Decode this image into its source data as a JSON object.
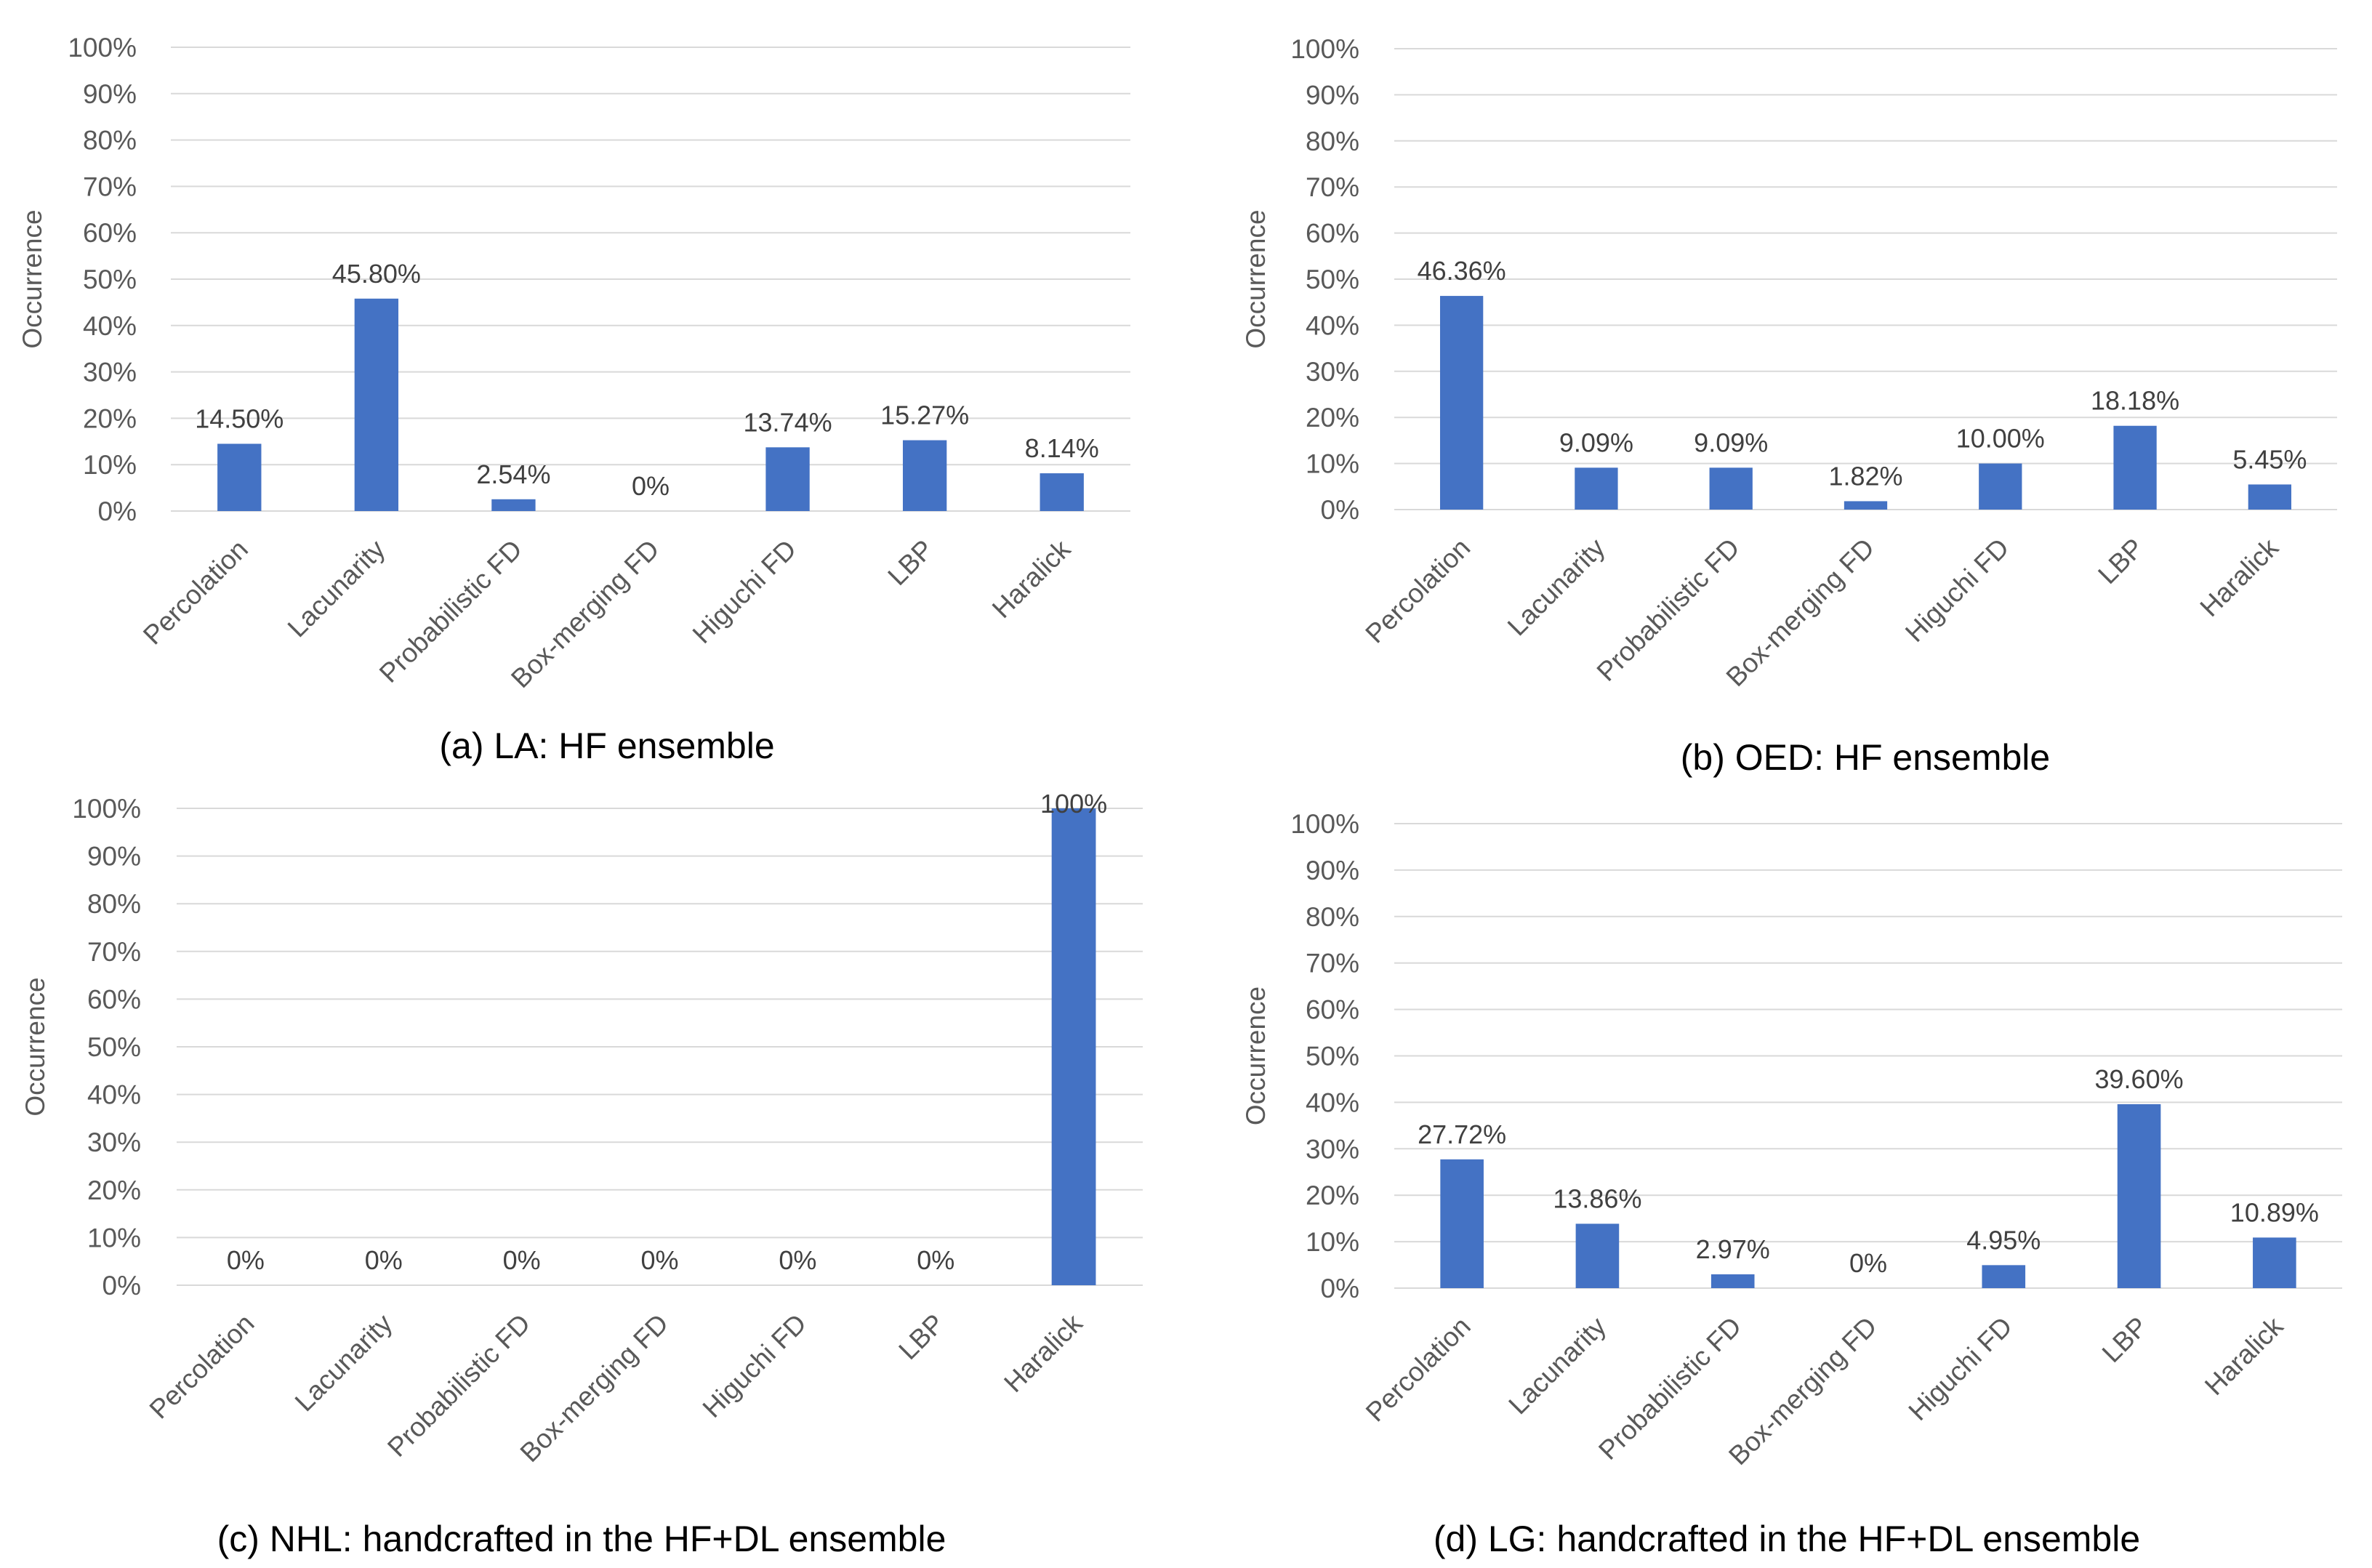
{
  "chart_data": [
    {
      "type": "bar",
      "caption": "(a) LA: HF ensemble",
      "ylabel": "Occurrence",
      "ylim": [
        0,
        100
      ],
      "yticks": [
        "0%",
        "10%",
        "20%",
        "30%",
        "40%",
        "50%",
        "60%",
        "70%",
        "80%",
        "90%",
        "100%"
      ],
      "categories": [
        "Percolation",
        "Lacunarity",
        "Probabilistic FD",
        "Box-merging FD",
        "Higuchi FD",
        "LBP",
        "Haralick"
      ],
      "values": [
        14.5,
        45.8,
        2.54,
        0,
        13.74,
        15.27,
        8.14
      ],
      "data_labels": [
        "14.50%",
        "45.80%",
        "2.54%",
        "0%",
        "13.74%",
        "15.27%",
        "8.14%"
      ],
      "grid": true,
      "bar_color": "#4472C4"
    },
    {
      "type": "bar",
      "caption": "(b) OED: HF ensemble",
      "ylabel": "Occurrence",
      "ylim": [
        0,
        100
      ],
      "yticks": [
        "0%",
        "10%",
        "20%",
        "30%",
        "40%",
        "50%",
        "60%",
        "70%",
        "80%",
        "90%",
        "100%"
      ],
      "categories": [
        "Percolation",
        "Lacunarity",
        "Probabilistic FD",
        "Box-merging FD",
        "Higuchi FD",
        "LBP",
        "Haralick"
      ],
      "values": [
        46.36,
        9.09,
        9.09,
        1.82,
        10.0,
        18.18,
        5.45
      ],
      "data_labels": [
        "46.36%",
        "9.09%",
        "9.09%",
        "1.82%",
        "10.00%",
        "18.18%",
        "5.45%"
      ],
      "grid": true,
      "bar_color": "#4472C4"
    },
    {
      "type": "bar",
      "caption": "(c) NHL: handcrafted in the HF+DL ensemble",
      "ylabel": "Occurrence",
      "ylim": [
        0,
        100
      ],
      "yticks": [
        "0%",
        "10%",
        "20%",
        "30%",
        "40%",
        "50%",
        "60%",
        "70%",
        "80%",
        "90%",
        "100%"
      ],
      "categories": [
        "Percolation",
        "Lacunarity",
        "Probabilistic FD",
        "Box-merging FD",
        "Higuchi FD",
        "LBP",
        "Haralick"
      ],
      "values": [
        0,
        0,
        0,
        0,
        0,
        0,
        100
      ],
      "data_labels": [
        "0%",
        "0%",
        "0%",
        "0%",
        "0%",
        "0%",
        "100%"
      ],
      "grid": true,
      "bar_color": "#4472C4"
    },
    {
      "type": "bar",
      "caption": "(d) LG: handcrafted in the HF+DL ensemble",
      "ylabel": "Occurrence",
      "ylim": [
        0,
        100
      ],
      "yticks": [
        "0%",
        "10%",
        "20%",
        "30%",
        "40%",
        "50%",
        "60%",
        "70%",
        "80%",
        "90%",
        "100%"
      ],
      "categories": [
        "Percolation",
        "Lacunarity",
        "Probabilistic FD",
        "Box-merging FD",
        "Higuchi FD",
        "LBP",
        "Haralick"
      ],
      "values": [
        27.72,
        13.86,
        2.97,
        0,
        4.95,
        39.6,
        10.89
      ],
      "data_labels": [
        "27.72%",
        "13.86%",
        "2.97%",
        "0%",
        "4.95%",
        "39.60%",
        "10.89%"
      ],
      "grid": true,
      "bar_color": "#4472C4"
    }
  ]
}
